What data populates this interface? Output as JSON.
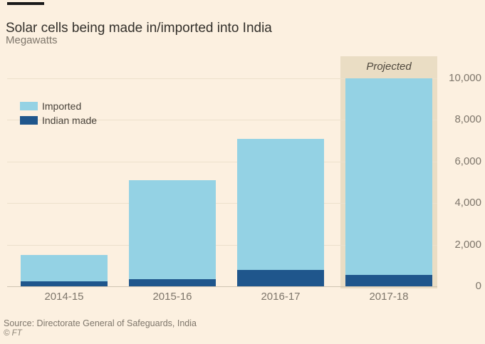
{
  "header": {
    "title": "Solar cells being made in/imported into India",
    "subtitle": "Megawatts"
  },
  "legend": {
    "items": [
      {
        "label": "Imported",
        "color": "#94d2e4"
      },
      {
        "label": "Indian made",
        "color": "#1f568c"
      }
    ]
  },
  "footer": {
    "source": "Source: Directorate General of Safeguards, India",
    "copyright": "© FT"
  },
  "colors": {
    "background": "#fcf0e0",
    "projected_band": "#eaddc4",
    "imported": "#94d2e4",
    "indian_made": "#1f568c",
    "gridline": "#ece0cc",
    "baseline": "#cfc4b2",
    "title_text": "#33302b",
    "muted_text": "#7e766b"
  },
  "chart_data": {
    "type": "bar",
    "stacked": true,
    "title": "Solar cells being made in/imported into India",
    "ylabel": "Megawatts",
    "categories": [
      "2014-15",
      "2015-16",
      "2016-17",
      "2017-18"
    ],
    "series": [
      {
        "name": "Indian made",
        "color": "#1f568c",
        "values": [
          250,
          350,
          800,
          550
        ]
      },
      {
        "name": "Imported",
        "color": "#94d2e4",
        "values": [
          1250,
          4750,
          6300,
          9450
        ]
      }
    ],
    "totals": [
      1500,
      5100,
      7100,
      10000
    ],
    "ylim": [
      0,
      10000
    ],
    "yticks": [
      0,
      2000,
      4000,
      6000,
      8000,
      10000
    ],
    "ytick_labels": [
      "0",
      "2,000",
      "4,000",
      "6,000",
      "8,000",
      "10,000"
    ],
    "grid": true,
    "legend_position": "upper-left",
    "annotations": [
      {
        "label": "Projected",
        "category": "2017-18",
        "style": "highlight-band"
      }
    ]
  }
}
